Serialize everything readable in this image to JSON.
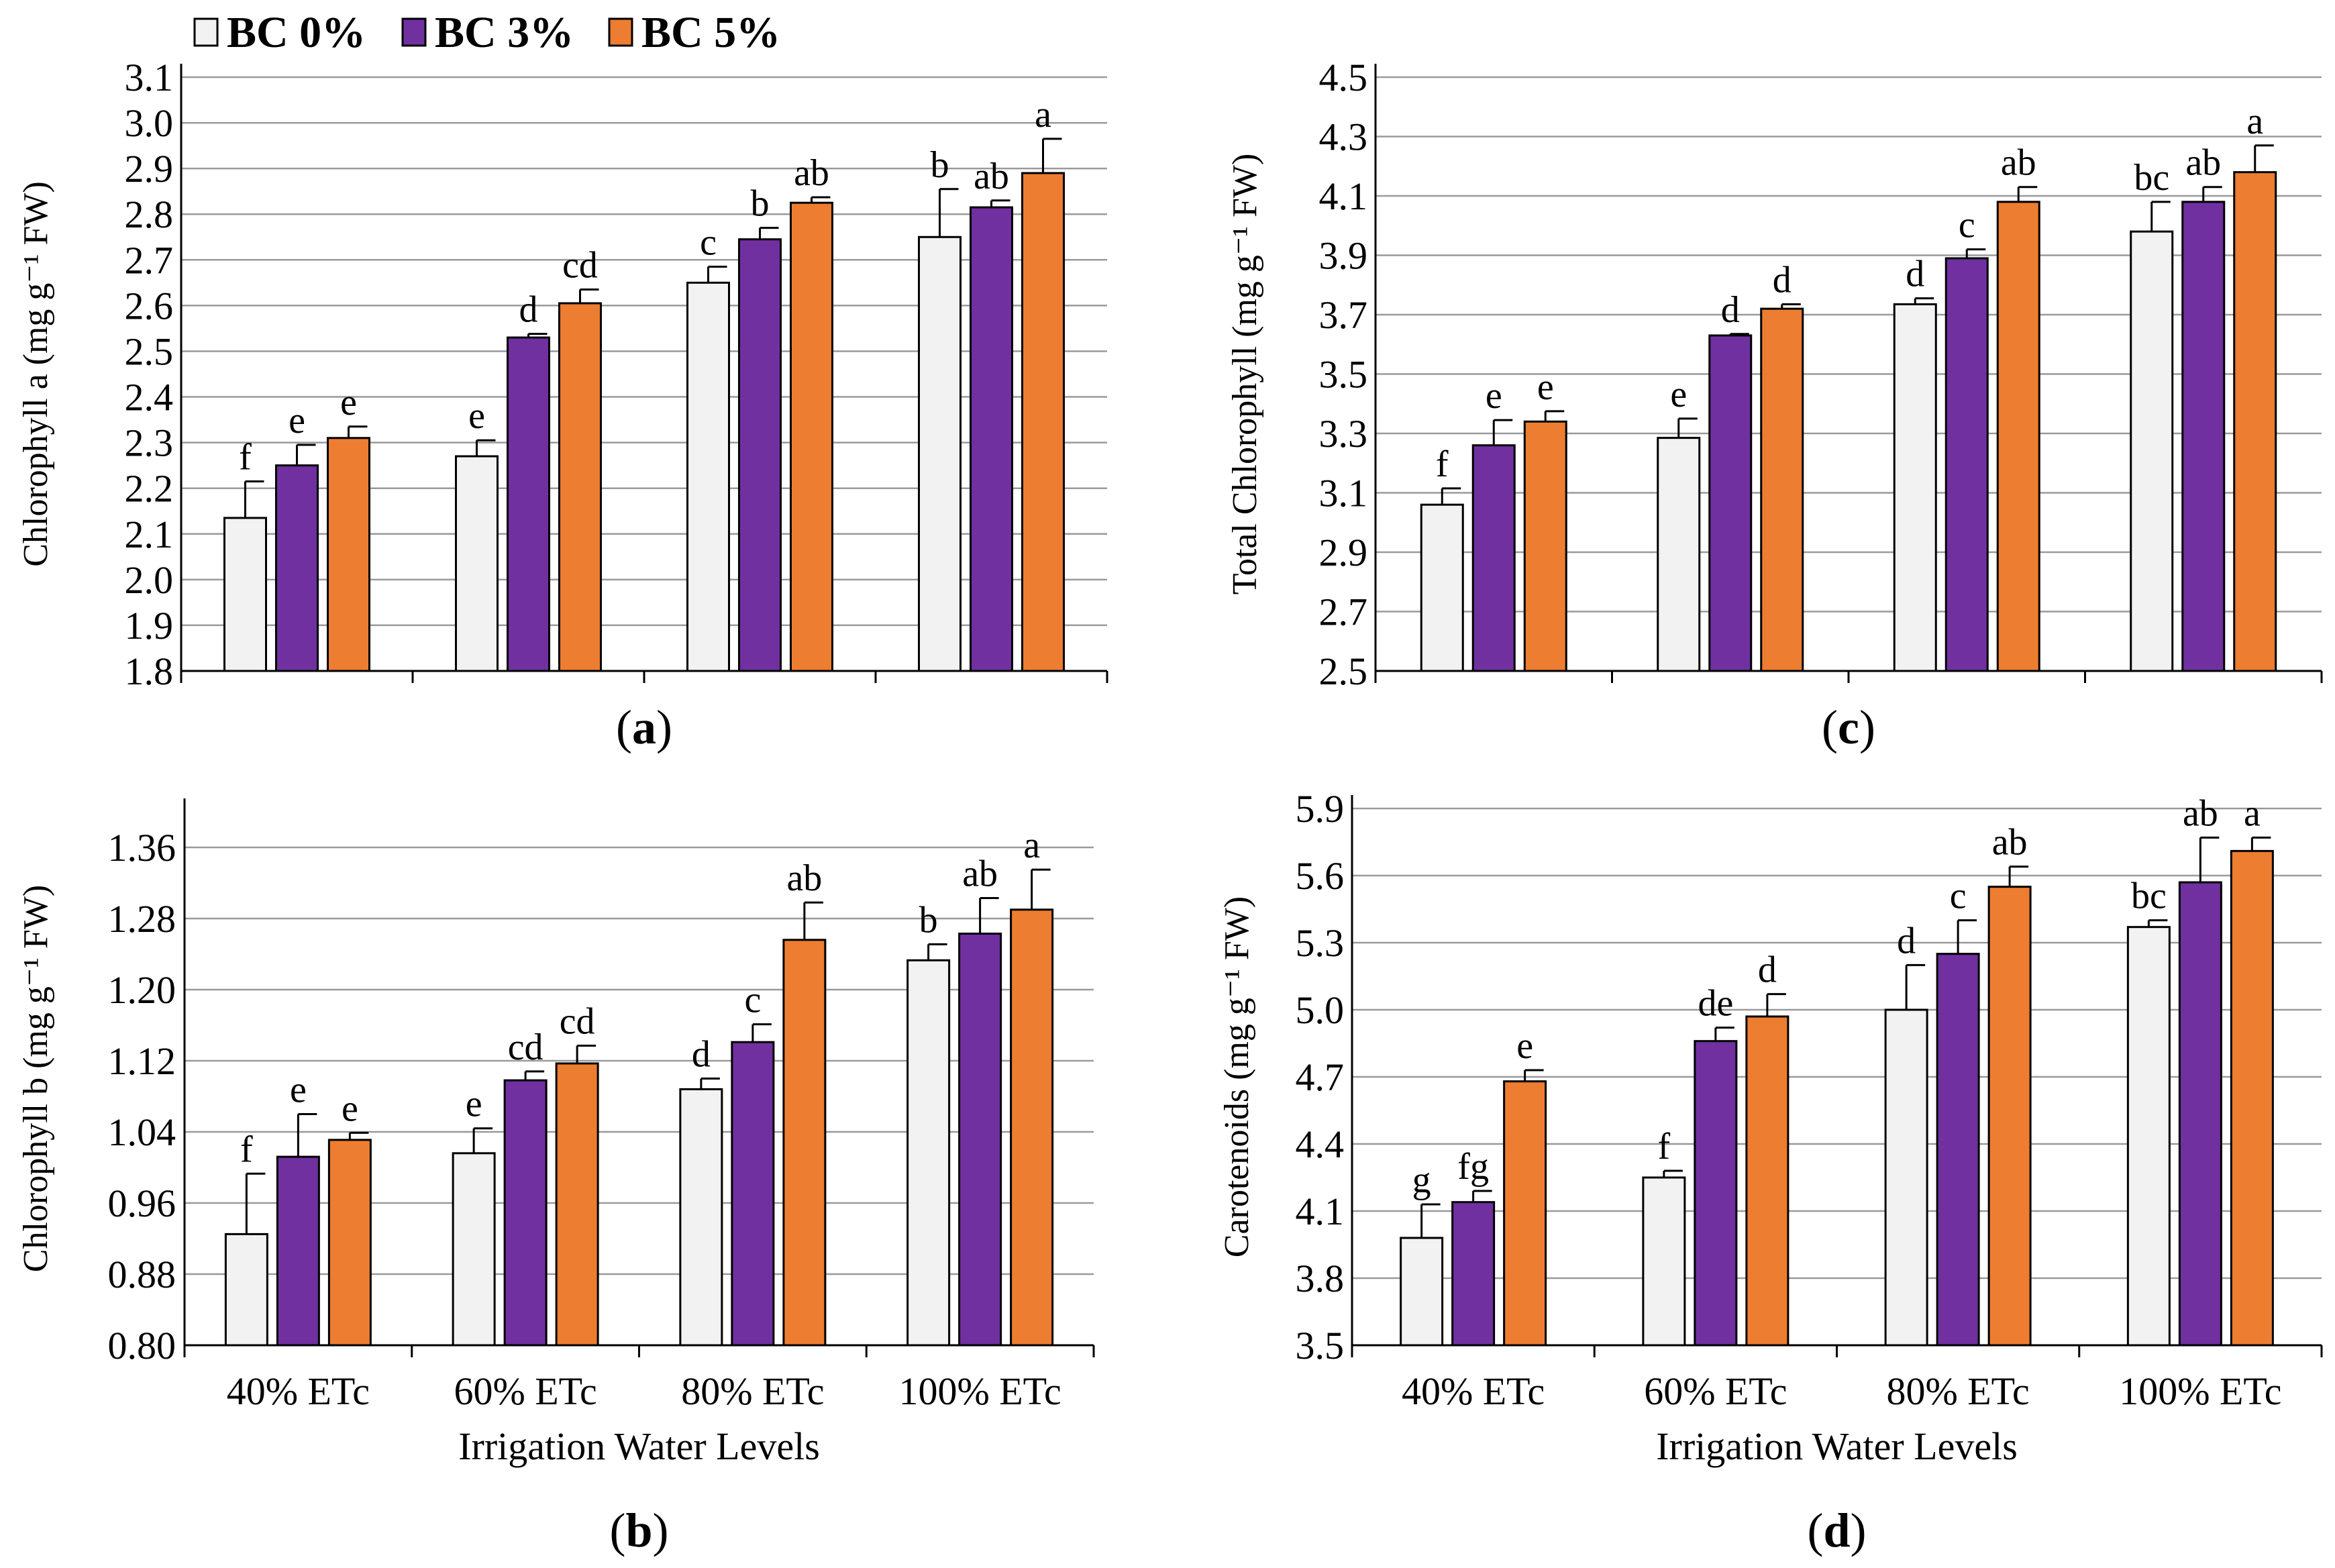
{
  "legend": [
    {
      "label": "BC 0%",
      "color": "#f2f2f2"
    },
    {
      "label": "BC 3%",
      "color": "#7030a0"
    },
    {
      "label": "BC 5%",
      "color": "#ed7d31"
    }
  ],
  "chart_data": [
    {
      "id": "a",
      "type": "bar",
      "panel_label": "(a)",
      "panel_letter": "a",
      "ylabel": "Chlorophyll a (mg g⁻¹ FW)",
      "xlabel": "",
      "categories": [
        "40% ETc",
        "60% ETc",
        "80% ETc",
        "100% ETc"
      ],
      "ylim": [
        1.8,
        3.1
      ],
      "yticks": [
        "1.8",
        "1.9",
        "2.0",
        "2.1",
        "2.2",
        "2.3",
        "2.4",
        "2.5",
        "2.6",
        "2.7",
        "2.8",
        "2.9",
        "3.0",
        "3.1"
      ],
      "series": [
        {
          "name": "BC 0%",
          "values": [
            2.135,
            2.27,
            2.65,
            2.75
          ],
          "errors": [
            0.08,
            0.035,
            0.035,
            0.105
          ],
          "letters": [
            "f",
            "e",
            "c",
            "b"
          ]
        },
        {
          "name": "BC 3%",
          "values": [
            2.25,
            2.53,
            2.745,
            2.815
          ],
          "errors": [
            0.045,
            0.008,
            0.025,
            0.015
          ],
          "letters": [
            "e",
            "d",
            "b",
            "ab"
          ]
        },
        {
          "name": "BC 5%",
          "values": [
            2.31,
            2.605,
            2.825,
            2.89
          ],
          "errors": [
            0.025,
            0.03,
            0.012,
            0.075
          ],
          "letters": [
            "e",
            "cd",
            "ab",
            "a"
          ]
        }
      ]
    },
    {
      "id": "b",
      "type": "bar",
      "panel_label": "(b)",
      "panel_letter": "b",
      "ylabel": "Chlorophyll b (mg g⁻¹ FW)",
      "xlabel": "Irrigation Water Levels",
      "categories": [
        "40% ETc",
        "60% ETc",
        "80% ETc",
        "100% ETc"
      ],
      "ylim": [
        0.8,
        1.4
      ],
      "yticks": [
        "0.80",
        "0.88",
        "0.96",
        "1.04",
        "1.12",
        "1.20",
        "1.28",
        "1.36"
      ],
      "series": [
        {
          "name": "BC 0%",
          "values": [
            0.925,
            1.016,
            1.088,
            1.233
          ],
          "errors": [
            0.068,
            0.028,
            0.012,
            0.018
          ],
          "letters": [
            "f",
            "e",
            "d",
            "b"
          ]
        },
        {
          "name": "BC 3%",
          "values": [
            1.012,
            1.098,
            1.141,
            1.263
          ],
          "errors": [
            0.048,
            0.01,
            0.02,
            0.04
          ],
          "letters": [
            "e",
            "cd",
            "c",
            "ab"
          ]
        },
        {
          "name": "BC 5%",
          "values": [
            1.031,
            1.117,
            1.256,
            1.29
          ],
          "errors": [
            0.008,
            0.02,
            0.042,
            0.045
          ],
          "letters": [
            "e",
            "cd",
            "ab",
            "a"
          ]
        }
      ]
    },
    {
      "id": "c",
      "type": "bar",
      "panel_label": "(c)",
      "panel_letter": "c",
      "ylabel": "Total Chlorophyll (mg g⁻¹ FW)",
      "xlabel": "",
      "categories": [
        "40% ETc",
        "60% ETc",
        "80% ETc",
        "100% ETc"
      ],
      "ylim": [
        2.5,
        4.5
      ],
      "yticks": [
        "2.5",
        "2.7",
        "2.9",
        "3.1",
        "3.3",
        "3.5",
        "3.7",
        "3.9",
        "4.1",
        "4.3",
        "4.5"
      ],
      "series": [
        {
          "name": "BC 0%",
          "values": [
            3.06,
            3.285,
            3.735,
            3.98
          ],
          "errors": [
            0.055,
            0.065,
            0.02,
            0.1
          ],
          "letters": [
            "f",
            "e",
            "d",
            "bc"
          ]
        },
        {
          "name": "BC 3%",
          "values": [
            3.26,
            3.63,
            3.89,
            4.08
          ],
          "errors": [
            0.085,
            0.005,
            0.03,
            0.05
          ],
          "letters": [
            "e",
            "d",
            "c",
            "ab"
          ]
        },
        {
          "name": "BC 5%",
          "values": [
            3.34,
            3.72,
            4.08,
            4.18
          ],
          "errors": [
            0.035,
            0.015,
            0.05,
            0.09
          ],
          "letters": [
            "e",
            "d",
            "ab",
            "a"
          ]
        }
      ]
    },
    {
      "id": "d",
      "type": "bar",
      "panel_label": "(d)",
      "panel_letter": "d",
      "ylabel": "Carotenoids (mg g⁻¹ FW)",
      "xlabel": "Irrigation Water Levels",
      "categories": [
        "40% ETc",
        "60% ETc",
        "80% ETc",
        "100% ETc"
      ],
      "ylim": [
        3.5,
        5.9
      ],
      "yticks": [
        "3.5",
        "3.8",
        "4.1",
        "4.4",
        "4.7",
        "5.0",
        "5.3",
        "5.6",
        "5.9"
      ],
      "series": [
        {
          "name": "BC 0%",
          "values": [
            3.98,
            4.25,
            5.0,
            5.37
          ],
          "errors": [
            0.15,
            0.03,
            0.2,
            0.03
          ],
          "letters": [
            "g",
            "f",
            "d",
            "bc"
          ]
        },
        {
          "name": "BC 3%",
          "values": [
            4.14,
            4.86,
            5.25,
            5.57
          ],
          "errors": [
            0.05,
            0.06,
            0.15,
            0.2
          ],
          "letters": [
            "fg",
            "de",
            "c",
            "ab"
          ]
        },
        {
          "name": "BC 5%",
          "values": [
            4.68,
            4.97,
            5.55,
            5.71
          ],
          "errors": [
            0.05,
            0.1,
            0.09,
            0.06
          ],
          "letters": [
            "e",
            "d",
            "ab",
            "a"
          ]
        }
      ]
    }
  ]
}
